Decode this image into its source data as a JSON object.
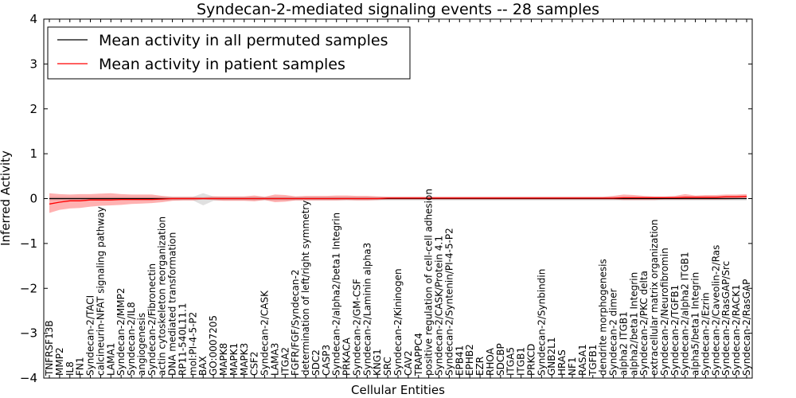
{
  "chart_data": {
    "type": "line",
    "title": "Syndecan-2-mediated signaling events -- 28 samples",
    "xlabel": "Cellular Entities",
    "ylabel": "Inferred Activity",
    "ylim": [
      -4,
      4
    ],
    "yticks": [
      "4",
      "3",
      "2",
      "1",
      "0",
      "−1",
      "−2",
      "−3",
      "−4"
    ],
    "grid": false,
    "legend_position": "top-left",
    "categories": [
      "TNFRSF13B",
      "MMP2",
      "IL8",
      "FN1",
      "Syndecan-2/TACI",
      "calcineurin-NFAT signaling pathway",
      "LAMA1",
      "Syndecan-2/MMP2",
      "Syndecan-2/IL8",
      "angiogenesis",
      "Syndecan-2/Fibronectin",
      "actin cytoskeleton reorganization",
      "DNA mediated transformation",
      "RP11-540L11.1",
      "mol:PI-4-5-P2",
      "BAX",
      "GO:0007205",
      "MAPK8",
      "MAPK1",
      "MAPK3",
      "CSF2",
      "Syndecan-2/CASK",
      "LAMA3",
      "ITGA2",
      "FGFR/FGF/Syndecan-2",
      "determination of left/right symmetry",
      "SDC2",
      "CASP3",
      "Syndecan-2/alpha2/beta1 Integrin",
      "PRKACA",
      "Syndecan-2/GM-CSF",
      "Syndecan-2/Laminin alpha3",
      "KNG1",
      "SRC",
      "Syndecan-2/Kininogen",
      "CAV2",
      "TRAPPC4",
      "positive regulation of cell-cell adhesion",
      "Syndecan-2/CASK/Protein 4.1",
      "Syndecan-2/Syntenin/PI-4-5-P2",
      "EPB41",
      "EPHB2",
      "EZR",
      "RHOA",
      "SDCBP",
      "ITGA5",
      "ITGB1",
      "PRKCD",
      "Syndecan-2/Synbindin",
      "GNB2L1",
      "HRAS",
      "NF1",
      "RASA1",
      "TGFB1",
      "dendrite morphogenesis",
      "Syndecan-2 dimer",
      "alpha2 ITGB1",
      "alpha2/beta1 Integrin",
      "Syndecan-2/PKC delta",
      "extracellular matrix organization",
      "Syndecan-2/Neurofibromin",
      "Syndecan-2/TGFB1",
      "Syndecan-2/alpha2 ITGB1",
      "alpha5/beta1 Integrin",
      "Syndecan-2/Ezrin",
      "Syndecan-2/Caveolin-2/Ras",
      "Syndecan-2/RasGAP/Src",
      "Syndecan-2/RACK1",
      "Syndecan-2/RasGAP"
    ],
    "series": [
      {
        "name": "Mean activity in all permuted samples",
        "color": "#000000",
        "values": [
          0.0,
          0.0,
          0.0,
          0.0,
          0.0,
          0.0,
          0.0,
          0.0,
          0.0,
          0.0,
          0.0,
          0.0,
          0.0,
          0.0,
          0.0,
          0.0,
          0.0,
          0.0,
          0.0,
          0.0,
          0.0,
          0.0,
          0.0,
          0.0,
          0.0,
          0.0,
          0.0,
          0.0,
          0.0,
          0.0,
          0.0,
          0.0,
          0.0,
          0.0,
          0.0,
          0.0,
          0.0,
          0.0,
          0.0,
          0.0,
          0.0,
          0.0,
          0.0,
          0.0,
          0.0,
          0.0,
          0.0,
          0.0,
          0.0,
          0.0,
          0.0,
          0.0,
          0.0,
          0.0,
          0.0,
          0.0,
          0.0,
          0.0,
          0.0,
          0.0,
          0.0,
          0.0,
          0.0,
          0.0,
          0.0,
          0.0,
          0.0,
          0.0,
          0.0
        ],
        "lower": [
          -0.04,
          -0.04,
          -0.04,
          -0.04,
          -0.04,
          -0.04,
          -0.04,
          -0.04,
          -0.04,
          -0.04,
          -0.04,
          -0.04,
          -0.04,
          -0.04,
          -0.04,
          -0.15,
          -0.05,
          -0.04,
          -0.04,
          -0.04,
          -0.04,
          -0.04,
          -0.04,
          -0.04,
          -0.04,
          -0.04,
          -0.04,
          -0.04,
          -0.04,
          -0.04,
          -0.04,
          -0.04,
          -0.04,
          -0.04,
          -0.04,
          -0.04,
          -0.04,
          -0.04,
          -0.04,
          -0.04,
          -0.04,
          -0.04,
          -0.04,
          -0.04,
          -0.04,
          -0.04,
          -0.04,
          -0.04,
          -0.04,
          -0.04,
          -0.04,
          -0.04,
          -0.04,
          -0.04,
          -0.04,
          -0.04,
          -0.04,
          -0.04,
          -0.04,
          -0.04,
          -0.04,
          -0.04,
          -0.04,
          -0.04,
          -0.04,
          -0.04,
          -0.04,
          -0.04,
          -0.04
        ],
        "upper": [
          0.04,
          0.04,
          0.04,
          0.04,
          0.04,
          0.04,
          0.04,
          0.04,
          0.04,
          0.04,
          0.04,
          0.04,
          0.04,
          0.04,
          0.04,
          0.12,
          0.05,
          0.04,
          0.04,
          0.04,
          0.04,
          0.04,
          0.04,
          0.04,
          0.04,
          0.04,
          0.04,
          0.04,
          0.04,
          0.04,
          0.04,
          0.04,
          0.04,
          0.04,
          0.04,
          0.04,
          0.04,
          0.04,
          0.04,
          0.04,
          0.04,
          0.04,
          0.04,
          0.04,
          0.04,
          0.04,
          0.04,
          0.04,
          0.04,
          0.04,
          0.04,
          0.04,
          0.04,
          0.04,
          0.04,
          0.04,
          0.04,
          0.04,
          0.04,
          0.04,
          0.04,
          0.04,
          0.04,
          0.04,
          0.04,
          0.04,
          0.04,
          0.04,
          0.04
        ]
      },
      {
        "name": "Mean activity in patient samples",
        "color": "#ff0000",
        "values": [
          -0.12,
          -0.08,
          -0.05,
          -0.05,
          -0.03,
          -0.03,
          -0.03,
          -0.02,
          -0.02,
          -0.02,
          -0.02,
          -0.01,
          0.0,
          0.0,
          0.0,
          0.0,
          0.0,
          0.0,
          0.0,
          0.0,
          0.0,
          0.0,
          0.0,
          0.0,
          0.0,
          0.0,
          0.0,
          0.0,
          0.0,
          0.0,
          0.0,
          0.0,
          0.0,
          0.01,
          0.01,
          0.01,
          0.01,
          0.01,
          0.01,
          0.01,
          0.01,
          0.01,
          0.01,
          0.01,
          0.01,
          0.01,
          0.01,
          0.01,
          0.01,
          0.01,
          0.01,
          0.01,
          0.01,
          0.01,
          0.01,
          0.01,
          0.02,
          0.02,
          0.02,
          0.02,
          0.02,
          0.02,
          0.03,
          0.03,
          0.03,
          0.03,
          0.04,
          0.04,
          0.05
        ],
        "lower": [
          -0.32,
          -0.25,
          -0.22,
          -0.21,
          -0.18,
          -0.16,
          -0.15,
          -0.14,
          -0.12,
          -0.11,
          -0.1,
          -0.08,
          -0.05,
          -0.04,
          -0.04,
          -0.02,
          -0.03,
          -0.05,
          -0.05,
          -0.05,
          -0.06,
          -0.03,
          -0.08,
          -0.07,
          -0.04,
          -0.04,
          -0.04,
          -0.04,
          -0.04,
          -0.03,
          -0.04,
          -0.04,
          -0.03,
          -0.02,
          -0.02,
          -0.02,
          -0.02,
          -0.02,
          -0.02,
          -0.02,
          -0.02,
          -0.02,
          -0.02,
          -0.02,
          -0.02,
          -0.02,
          -0.02,
          -0.02,
          -0.02,
          -0.02,
          -0.02,
          -0.02,
          -0.02,
          -0.02,
          -0.02,
          -0.02,
          -0.03,
          -0.03,
          -0.03,
          -0.03,
          -0.02,
          -0.02,
          -0.02,
          -0.02,
          -0.02,
          -0.02,
          -0.02,
          -0.01,
          0.0
        ],
        "upper": [
          0.12,
          0.1,
          0.09,
          0.1,
          0.1,
          0.11,
          0.12,
          0.1,
          0.09,
          0.09,
          0.09,
          0.06,
          0.04,
          0.04,
          0.04,
          0.03,
          0.05,
          0.05,
          0.05,
          0.05,
          0.07,
          0.04,
          0.09,
          0.08,
          0.05,
          0.06,
          0.06,
          0.06,
          0.07,
          0.07,
          0.06,
          0.06,
          0.05,
          0.04,
          0.04,
          0.04,
          0.04,
          0.04,
          0.04,
          0.04,
          0.04,
          0.04,
          0.04,
          0.04,
          0.04,
          0.04,
          0.04,
          0.04,
          0.04,
          0.04,
          0.04,
          0.04,
          0.04,
          0.04,
          0.04,
          0.06,
          0.09,
          0.08,
          0.06,
          0.05,
          0.05,
          0.06,
          0.1,
          0.07,
          0.08,
          0.08,
          0.09,
          0.09,
          0.1
        ]
      }
    ]
  }
}
